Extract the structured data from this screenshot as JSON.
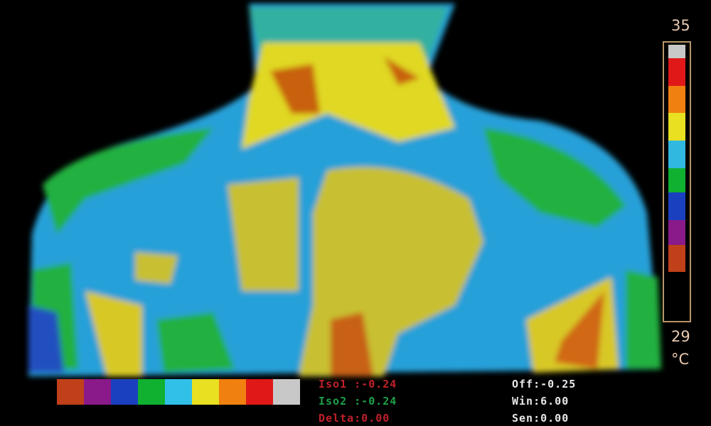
{
  "scale": {
    "max": "35",
    "min": "29",
    "unit": "°C"
  },
  "palette_colors": [
    "#c0401a",
    "#8a1a8a",
    "#1a40c0",
    "#10b030",
    "#30c0e8",
    "#e8e020",
    "#f08010",
    "#e01818",
    "#c8c8c8"
  ],
  "colorbar_colors": [
    "#c8c8c8",
    "#e01818",
    "#f08010",
    "#e8e020",
    "#30b8e0",
    "#10b030",
    "#1a40c0",
    "#8a1a8a",
    "#c0401a",
    "#000000"
  ],
  "readouts": {
    "iso1": "Iso1 :-0.24",
    "iso2": "Iso2 :-0.24",
    "delta": "Delta:0.00",
    "off": "Off:-0.25",
    "win": "Win:6.00",
    "sen": "Sen:0.00"
  }
}
